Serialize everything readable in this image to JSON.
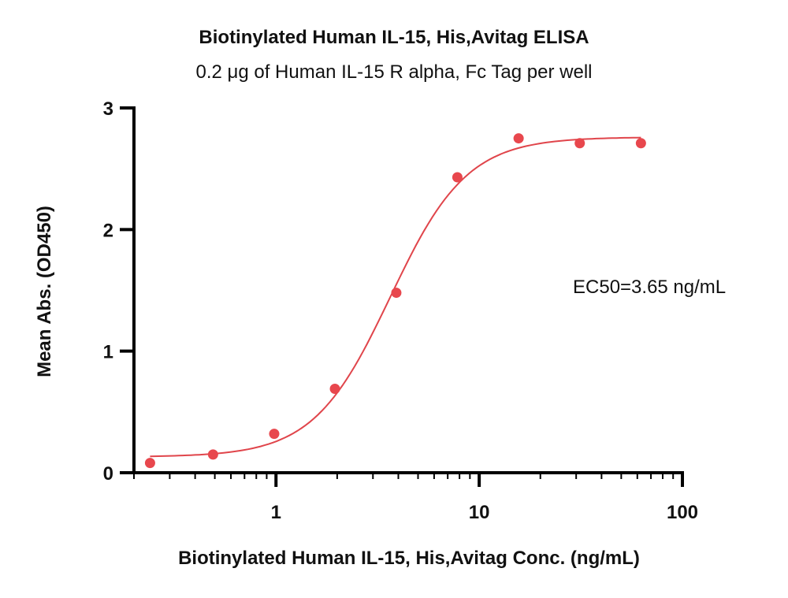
{
  "chart_data": {
    "type": "scatter",
    "title": "Biotinylated Human IL-15, His,Avitag ELISA",
    "subtitle": "0.2 μg of Human IL-15 R alpha, Fc Tag per well",
    "xlabel": "Biotinylated Human IL-15, His,Avitag Conc. (ng/mL)",
    "ylabel": "Mean Abs. (OD450)",
    "x_scale": "log",
    "xlim": [
      0.2,
      100
    ],
    "ylim": [
      0,
      3
    ],
    "x_ticks": [
      {
        "value": 1,
        "label": "1"
      },
      {
        "value": 10,
        "label": "10"
      },
      {
        "value": 100,
        "label": "100"
      }
    ],
    "y_ticks": [
      {
        "value": 0,
        "label": "0"
      },
      {
        "value": 1,
        "label": "1"
      },
      {
        "value": 2,
        "label": "2"
      },
      {
        "value": 3,
        "label": "3"
      }
    ],
    "grid": false,
    "series": [
      {
        "color": "#e8474d",
        "x": [
          0.24,
          0.49,
          0.98,
          1.95,
          3.91,
          7.81,
          15.63,
          31.25,
          62.5
        ],
        "y": [
          0.08,
          0.15,
          0.32,
          0.69,
          1.48,
          2.43,
          2.75,
          2.71,
          2.71
        ]
      }
    ],
    "fit": {
      "type": "4PL",
      "color": "#e0454b",
      "bottom": 0.13,
      "top": 2.76,
      "ec50": 3.65,
      "hill": 2.3
    },
    "annotation": "EC50=3.65 ng/mL"
  }
}
